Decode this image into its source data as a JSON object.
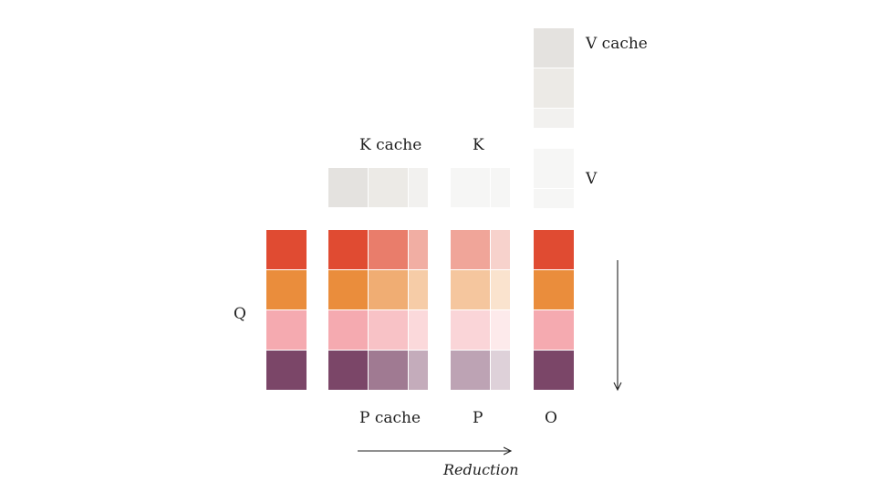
{
  "labels": {
    "q": "Q",
    "k_cache": "K cache",
    "k": "K",
    "v_cache": "V cache",
    "v": "V",
    "p_cache": "P cache",
    "p": "P",
    "o": "O",
    "reduction": "Reduction"
  },
  "colors": {
    "row_colors": [
      "#e04b32",
      "#ea8d3c",
      "#f5aab0",
      "#7b4668"
    ],
    "gray_dark": "#e4e2df",
    "gray_mid": "#eceae6",
    "gray_light": "#f2f1ef",
    "gray_pale": "#f6f6f5",
    "arrow": "#222222"
  }
}
